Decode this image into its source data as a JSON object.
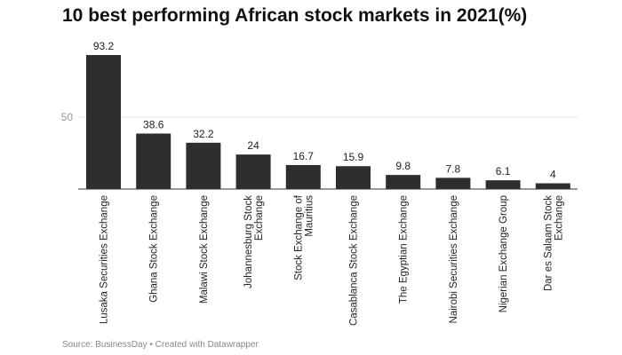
{
  "chart_data": {
    "type": "bar",
    "title": "10 best performing African stock markets in 2021(%)",
    "categories": [
      [
        "Lusaka Securities Exchange"
      ],
      [
        "Ghana Stock Exchange"
      ],
      [
        "Malawi Stock Exchange"
      ],
      [
        "Johannesburg Stock",
        "Exchange"
      ],
      [
        "Stock Exchange of",
        "Mauritius"
      ],
      [
        "Casablanca Stock Exchange"
      ],
      [
        "The Egyptian Exchange"
      ],
      [
        "Nairobi Securities Exchange"
      ],
      [
        "Nigerian Exchange Group"
      ],
      [
        "Dar es Salaam Stock",
        "Exchange"
      ]
    ],
    "values": [
      93.2,
      38.6,
      32.2,
      24,
      16.7,
      15.9,
      9.8,
      7.8,
      6.1,
      4
    ],
    "value_labels": [
      "93.2",
      "38.6",
      "32.2",
      "24",
      "16.7",
      "15.9",
      "9.8",
      "7.8",
      "6.1",
      "4"
    ],
    "yticks": [
      50
    ],
    "ylim": [
      0,
      93.2
    ],
    "grid": true,
    "bar_color": "#2e2e2e",
    "xlabel": "",
    "ylabel": ""
  },
  "footer": "Source: BusinessDay • Created with Datawrapper"
}
